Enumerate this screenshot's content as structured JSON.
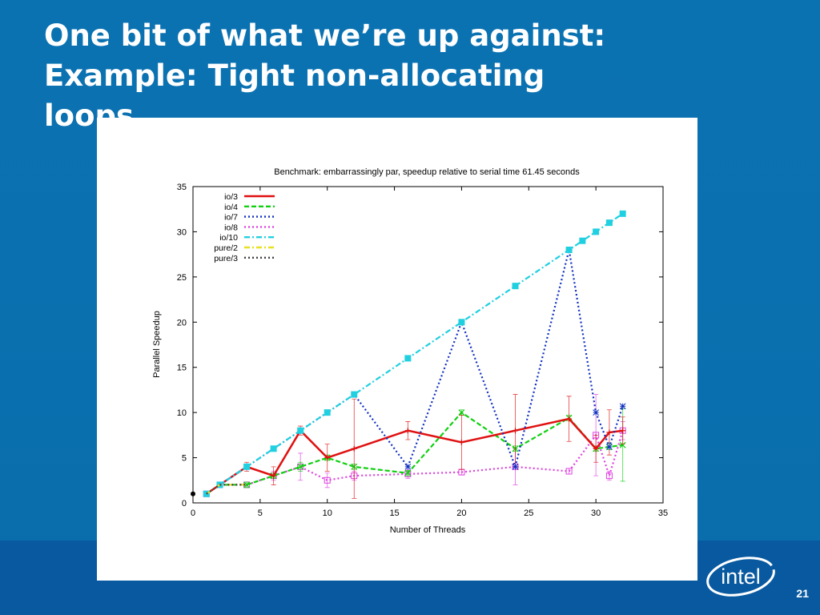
{
  "slide": {
    "title": "One bit of what we’re up against:\nExample: Tight non-allocating\nloops",
    "page_number": "21",
    "logo_text": "intel"
  },
  "chart_data": {
    "type": "line",
    "title": "Benchmark: embarrassingly par, speedup relative to serial time 61.45 seconds",
    "xlabel": "Number of Threads",
    "ylabel": "Parallel Speedup",
    "xlim": [
      0,
      35
    ],
    "ylim": [
      0,
      35
    ],
    "xticks": [
      0,
      5,
      10,
      15,
      20,
      25,
      30,
      35
    ],
    "yticks": [
      0,
      5,
      10,
      15,
      20,
      25,
      30,
      35
    ],
    "legend_position": "top-left",
    "series": [
      {
        "name": "io/3",
        "color": "#e01010",
        "style": "solid",
        "marker": "plus",
        "x": [
          1,
          2,
          4,
          6,
          8,
          10,
          12,
          16,
          20,
          24,
          28,
          30,
          31,
          32
        ],
        "y": [
          1,
          2,
          4,
          3,
          8,
          5,
          6,
          8,
          6.7,
          8,
          9.3,
          6,
          7.8,
          8
        ],
        "err": [
          0,
          0.3,
          0.5,
          1,
          0.5,
          1.5,
          5.5,
          1,
          3,
          4,
          2.5,
          1.5,
          2.5,
          1.5
        ]
      },
      {
        "name": "io/4",
        "color": "#10d010",
        "style": "dashed",
        "marker": "x",
        "x": [
          1,
          2,
          4,
          6,
          8,
          10,
          12,
          16,
          20,
          24,
          28,
          30,
          31,
          32
        ],
        "y": [
          1,
          2,
          2,
          3,
          4,
          5,
          4,
          3.3,
          10,
          6,
          9.4,
          6,
          6.2,
          6.4
        ],
        "err": [
          0,
          0,
          0.3,
          0.3,
          0.5,
          0.3,
          0.3,
          0.3,
          0.3,
          0.3,
          0.3,
          0.3,
          0.3,
          4
        ]
      },
      {
        "name": "io/7",
        "color": "#1030c0",
        "style": "dotted",
        "marker": "star",
        "x": [
          1,
          2,
          4,
          6,
          8,
          10,
          12,
          16,
          20,
          24,
          28,
          30,
          31,
          32
        ],
        "y": [
          1,
          2,
          4,
          6,
          8,
          10,
          12,
          4,
          20,
          4,
          28,
          10,
          6.2,
          10.7
        ],
        "err": [
          0,
          0,
          0,
          0,
          0,
          0,
          0,
          0,
          0,
          0,
          0,
          0,
          0,
          0
        ]
      },
      {
        "name": "io/8",
        "color": "#e040e0",
        "style": "dotted",
        "marker": "square",
        "x": [
          1,
          2,
          4,
          6,
          8,
          10,
          12,
          16,
          20,
          24,
          28,
          30,
          31,
          32
        ],
        "y": [
          1,
          2,
          2,
          3,
          4,
          2.5,
          3,
          3.2,
          3.4,
          4,
          3.5,
          7.5,
          3,
          8
        ],
        "err": [
          0,
          0,
          0.3,
          0.5,
          1.5,
          0.8,
          0.5,
          0.5,
          0.3,
          2,
          0.3,
          4.5,
          0.5,
          1
        ]
      },
      {
        "name": "io/10",
        "color": "#20d0e0",
        "style": "dashdot",
        "marker": "filled-square",
        "x": [
          1,
          2,
          4,
          6,
          8,
          10,
          12,
          16,
          20,
          24,
          28,
          29,
          30,
          31,
          32
        ],
        "y": [
          1,
          2,
          4,
          6,
          8,
          10,
          12,
          16,
          20,
          24,
          28,
          29,
          30,
          31,
          32
        ],
        "err": [
          0,
          0,
          0,
          0,
          0,
          0,
          0,
          0,
          0,
          0,
          0,
          0,
          0,
          0,
          0
        ]
      },
      {
        "name": "pure/2",
        "color": "#e8e020",
        "style": "dashdot",
        "marker": "none",
        "x": [
          1,
          2,
          4
        ],
        "y": [
          1,
          2,
          2
        ],
        "err": [
          0,
          0,
          0
        ]
      },
      {
        "name": "pure/3",
        "color": "#404040",
        "style": "dotted",
        "marker": "none",
        "x": [
          1,
          2,
          4
        ],
        "y": [
          1,
          2,
          2
        ],
        "err": [
          0,
          0,
          0
        ]
      }
    ],
    "extra_points": [
      {
        "x": 0,
        "y": 1,
        "color": "#000000"
      }
    ]
  }
}
